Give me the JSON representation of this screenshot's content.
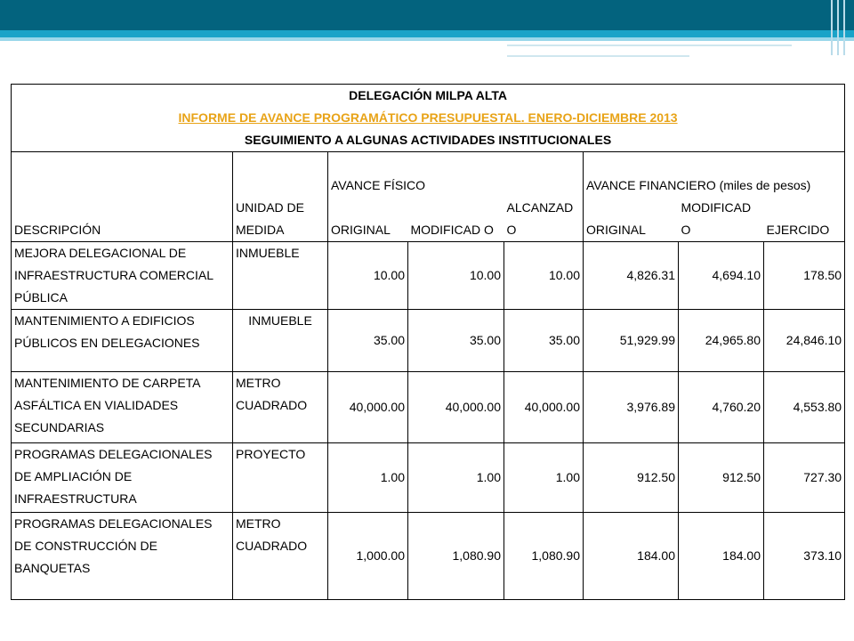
{
  "header": {
    "line1": "DELEGACIÓN MILPA ALTA",
    "line2": "INFORME DE AVANCE PROGRAMÁTICO PRESUPUESTAL. ENERO-DICIEMBRE 2013",
    "line3": "SEGUIMIENTO A ALGUNAS ACTIVIDADES INSTITUCIONALES"
  },
  "columns": {
    "descripcion": "DESCRIPCIÓN",
    "unidad": "UNIDAD DE MEDIDA",
    "avance_fisico": "AVANCE FÍSICO",
    "avance_financiero": "AVANCE FINANCIERO (miles de pesos)",
    "original_f": "ORIGINAL",
    "modificado_f": "MODIFICAD O",
    "alcanzado_f": "ALCANZAD O",
    "original_m": "ORIGINAL",
    "modificado_m": "MODIFICAD O",
    "ejercido": "EJERCIDO"
  },
  "rows": [
    {
      "descripcion": "MEJORA DELEGACIONAL DE INFRAESTRUCTURA COMERCIAL PÚBLICA",
      "unidad": "INMUEBLE",
      "original_f": "10.00",
      "modificado_f": "10.00",
      "alcanzado_f": "10.00",
      "original_m": "4,826.31",
      "modificado_m": "4,694.10",
      "ejercido": "178.50"
    },
    {
      "descripcion": "MANTENIMIENTO A EDIFICIOS PÚBLICOS EN DELEGACIONES",
      "unidad": "INMUEBLE",
      "original_f": "35.00",
      "modificado_f": "35.00",
      "alcanzado_f": "35.00",
      "original_m": "51,929.99",
      "modificado_m": "24,965.80",
      "ejercido": "24,846.10"
    },
    {
      "descripcion": "MANTENIMIENTO DE CARPETA ASFÁLTICA EN VIALIDADES SECUNDARIAS",
      "unidad": "METRO CUADRADO",
      "original_f": "40,000.00",
      "modificado_f": "40,000.00",
      "alcanzado_f": "40,000.00",
      "original_m": "3,976.89",
      "modificado_m": "4,760.20",
      "ejercido": "4,553.80"
    },
    {
      "descripcion": "PROGRAMAS DELEGACIONALES DE AMPLIACIÓN DE INFRAESTRUCTURA",
      "unidad": "PROYECTO",
      "original_f": "1.00",
      "modificado_f": "1.00",
      "alcanzado_f": "1.00",
      "original_m": "912.50",
      "modificado_m": "912.50",
      "ejercido": "727.30"
    },
    {
      "descripcion": "PROGRAMAS DELEGACIONALES DE CONSTRUCCIÓN DE BANQUETAS",
      "unidad": "METRO CUADRADO",
      "original_f": "1,000.00",
      "modificado_f": "1,080.90",
      "alcanzado_f": "1,080.90",
      "original_m": "184.00",
      "modificado_m": "184.00",
      "ejercido": "373.10"
    }
  ],
  "colors": {
    "band_dark": "#03637e",
    "band_mid": "#1aa3c8",
    "link": "#e8a317"
  }
}
